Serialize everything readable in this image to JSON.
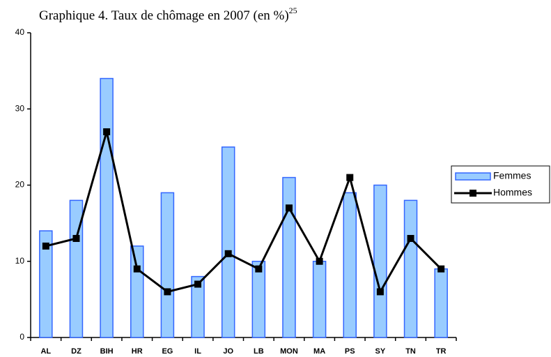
{
  "chart_data": {
    "type": "bar",
    "title": "Graphique 4. Taux de chômage en 2007 (en %)",
    "title_note": "25",
    "categories": [
      "AL",
      "DZ",
      "BIH",
      "HR",
      "EG",
      "IL",
      "JO",
      "LB",
      "MON",
      "MA",
      "PS",
      "SY",
      "TN",
      "TR"
    ],
    "series": [
      {
        "name": "Femmes",
        "type": "bar",
        "color": "#99ccff",
        "values": [
          14,
          18,
          34,
          12,
          19,
          8,
          25,
          10,
          21,
          10,
          19,
          20,
          18,
          9
        ]
      },
      {
        "name": "Hommes",
        "type": "line",
        "color": "#000000",
        "values": [
          12,
          13,
          27,
          9,
          6,
          7,
          11,
          9,
          17,
          10,
          21,
          6,
          13,
          9
        ]
      }
    ],
    "ylim": [
      0,
      40
    ],
    "yticks": [
      0,
      10,
      20,
      30,
      40
    ],
    "legend": "right"
  }
}
